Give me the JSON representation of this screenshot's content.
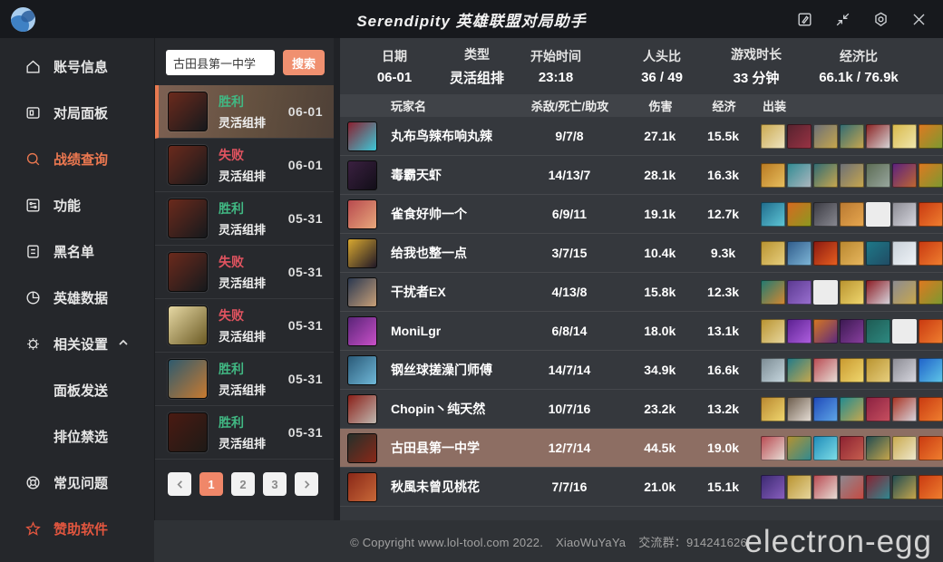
{
  "titlebar": {
    "title": "Serendipity 英雄联盟对局助手"
  },
  "sidebar": {
    "items": [
      {
        "label": "账号信息"
      },
      {
        "label": "对局面板"
      },
      {
        "label": "战绩查询"
      },
      {
        "label": "功能"
      },
      {
        "label": "黑名单"
      },
      {
        "label": "英雄数据"
      },
      {
        "label": "相关设置"
      },
      {
        "label": "面板发送"
      },
      {
        "label": "排位禁选"
      },
      {
        "label": "常见问题"
      },
      {
        "label": "赞助软件"
      }
    ]
  },
  "search": {
    "value": "古田县第一中学",
    "button_label": "搜索"
  },
  "match_list": [
    {
      "result": "胜利",
      "win": true,
      "type": "灵活组排",
      "date": "06-01",
      "selected": true,
      "avatar": [
        "#6b2a1c",
        "#16191c"
      ]
    },
    {
      "result": "失败",
      "win": false,
      "type": "灵活组排",
      "date": "06-01",
      "selected": false,
      "avatar": [
        "#6b2a1c",
        "#16191c"
      ]
    },
    {
      "result": "胜利",
      "win": true,
      "type": "灵活组排",
      "date": "05-31",
      "selected": false,
      "avatar": [
        "#6b2a1c",
        "#16191c"
      ]
    },
    {
      "result": "失败",
      "win": false,
      "type": "灵活组排",
      "date": "05-31",
      "selected": false,
      "avatar": [
        "#6b2a1c",
        "#16191c"
      ]
    },
    {
      "result": "失败",
      "win": false,
      "type": "灵活组排",
      "date": "05-31",
      "selected": false,
      "avatar": [
        "#e6d8a4",
        "#6b5a24"
      ]
    },
    {
      "result": "胜利",
      "win": true,
      "type": "灵活组排",
      "date": "05-31",
      "selected": false,
      "avatar": [
        "#2e5a6e",
        "#c87a30"
      ]
    },
    {
      "result": "胜利",
      "win": true,
      "type": "灵活组排",
      "date": "05-31",
      "selected": false,
      "avatar": [
        "#4a1a12",
        "#1e1a16"
      ]
    }
  ],
  "pagination": {
    "pages": [
      "1",
      "2",
      "3"
    ],
    "active_index": 0
  },
  "detail": {
    "stats": [
      {
        "label": "日期",
        "value": "06-01"
      },
      {
        "label": "类型",
        "value": "灵活组排"
      },
      {
        "label": "开始时间",
        "value": "23:18"
      },
      {
        "label": "人头比",
        "value": "36 / 49"
      },
      {
        "label": "游戏时长",
        "value": "33 分钟"
      },
      {
        "label": "经济比",
        "value": "66.1k / 76.9k"
      }
    ],
    "columns": {
      "player": "玩家名",
      "kda": "杀敌/死亡/助攻",
      "damage": "伤害",
      "economy": "经济",
      "items": "出装"
    },
    "players": [
      {
        "name": "丸布鸟辣布响丸辣",
        "kda": "9/7/8",
        "damage": "27.1k",
        "economy": "15.5k",
        "highlight": false,
        "avatar": [
          "#8a2030",
          "#3cc8d8"
        ],
        "items": [
          [
            "#caa84e",
            "#efe6c4"
          ],
          [
            "#55222e",
            "#9a3344"
          ],
          [
            "#6a6e78",
            "#c9a84c"
          ],
          [
            "#2e6a74",
            "#caa84e"
          ],
          [
            "#8a2020",
            "#d8d8da"
          ],
          [
            "#d8b84a",
            "#f0e8b0"
          ],
          [
            "#e07820",
            "#7a9a30"
          ]
        ]
      },
      {
        "name": "毒霸天虾",
        "kda": "14/13/7",
        "damage": "28.1k",
        "economy": "16.3k",
        "highlight": false,
        "avatar": [
          "#3a2040",
          "#120e18"
        ],
        "items": [
          [
            "#b87820",
            "#e8c060"
          ],
          [
            "#2e8a92",
            "#b0b8c0"
          ],
          [
            "#2e6a74",
            "#caa84e"
          ],
          [
            "#6a6e78",
            "#c9a84c"
          ],
          [
            "#5a6a52",
            "#9aa8a0"
          ],
          [
            "#5a2080",
            "#c06830"
          ],
          [
            "#e07820",
            "#7a9a30"
          ]
        ]
      },
      {
        "name": "雀食好帅一个",
        "kda": "6/9/11",
        "damage": "19.1k",
        "economy": "12.7k",
        "highlight": false,
        "avatar": [
          "#b84a4e",
          "#e8a87c"
        ],
        "items": [
          [
            "#1e6a8a",
            "#60c8d8"
          ],
          [
            "#d86820",
            "#8a9a20"
          ],
          [
            "#3a3a42",
            "#8a8a92"
          ],
          [
            "#b87830",
            "#e8a850"
          ],
          "empty",
          [
            "#8a8a92",
            "#d8d8e0"
          ],
          [
            "#c83810",
            "#f08030"
          ]
        ]
      },
      {
        "name": "给我也整一点",
        "kda": "3/7/15",
        "damage": "10.4k",
        "economy": "9.3k",
        "highlight": false,
        "avatar": [
          "#d8a830",
          "#201826"
        ],
        "items": [
          [
            "#b8922e",
            "#e8d080"
          ],
          [
            "#2e5a8a",
            "#80b8d8"
          ],
          [
            "#8a1810",
            "#e86020"
          ],
          [
            "#b8862e",
            "#e8b860"
          ],
          [
            "#1e7a8a",
            "#204a62"
          ],
          [
            "#c8d0d8",
            "#f0f4f8"
          ],
          [
            "#c83810",
            "#f08030"
          ]
        ]
      },
      {
        "name": "干扰者EX",
        "kda": "4/13/8",
        "damage": "15.8k",
        "economy": "12.3k",
        "highlight": false,
        "avatar": [
          "#2a3850",
          "#c8a078"
        ],
        "items": [
          [
            "#1e7a72",
            "#d88830"
          ],
          [
            "#5a3890",
            "#9a70d0"
          ],
          "empty",
          [
            "#b8922e",
            "#f0d870"
          ],
          [
            "#8a1820",
            "#d8d8e0"
          ],
          [
            "#8a8a92",
            "#c9a84c"
          ],
          [
            "#e07820",
            "#7a9a30"
          ]
        ]
      },
      {
        "name": "MoniLgr",
        "kda": "6/8/14",
        "damage": "18.0k",
        "economy": "13.1k",
        "highlight": false,
        "avatar": [
          "#5a2478",
          "#c850c8"
        ],
        "items": [
          [
            "#b8922e",
            "#e8d8a0"
          ],
          [
            "#5a2090",
            "#b060e0"
          ],
          [
            "#d87820",
            "#5a2880"
          ],
          [
            "#3a1850",
            "#8a40a0"
          ],
          [
            "#1e5a52",
            "#2e8a82"
          ],
          "empty",
          [
            "#c83810",
            "#f08030"
          ]
        ]
      },
      {
        "name": "钢丝球搓澡门师傅",
        "kda": "14/7/14",
        "damage": "34.9k",
        "economy": "16.6k",
        "highlight": false,
        "avatar": [
          "#2a5a78",
          "#70b8d8"
        ],
        "items": [
          [
            "#7a8a92",
            "#c8d8e0"
          ],
          [
            "#1e7a8a",
            "#c9a84c"
          ],
          [
            "#b84850",
            "#e8e0d8"
          ],
          [
            "#c8982e",
            "#f0d870"
          ],
          [
            "#b8922e",
            "#e8d080"
          ],
          [
            "#8a8a92",
            "#d8d8e0"
          ],
          [
            "#1e60c8",
            "#60c8e8"
          ]
        ]
      },
      {
        "name": "Chopin丶纯天然",
        "kda": "10/7/16",
        "damage": "23.2k",
        "economy": "13.2k",
        "highlight": false,
        "avatar": [
          "#8a1f18",
          "#c0b8b0"
        ],
        "items": [
          [
            "#b8862e",
            "#f0d870"
          ],
          [
            "#6a5a4a",
            "#e8e0d8"
          ],
          [
            "#1e48b8",
            "#60a8e8"
          ],
          [
            "#1e8a92",
            "#c9a84c"
          ],
          [
            "#8a2040",
            "#c85060"
          ],
          [
            "#a83020",
            "#d8d8e0"
          ],
          [
            "#c83810",
            "#f08030"
          ]
        ]
      },
      {
        "name": "古田县第一中学",
        "kda": "12/7/14",
        "damage": "44.5k",
        "economy": "19.0k",
        "highlight": true,
        "avatar": [
          "#26302a",
          "#8a2818"
        ],
        "items": [
          [
            "#b84850",
            "#e8e0d8"
          ],
          [
            "#b8922e",
            "#2e8a92"
          ],
          [
            "#1e8ab8",
            "#80e0e8"
          ],
          [
            "#8a2030",
            "#c86050"
          ],
          [
            "#1e4a52",
            "#c9a84c"
          ],
          [
            "#c8a84c",
            "#f0ead0"
          ],
          [
            "#c83810",
            "#f08030"
          ]
        ]
      },
      {
        "name": "秋風未曾见桃花",
        "kda": "7/7/16",
        "damage": "21.0k",
        "economy": "15.1k",
        "highlight": false,
        "avatar": [
          "#8a2818",
          "#c86838"
        ],
        "items": [
          [
            "#3a2870",
            "#8a60c0"
          ],
          [
            "#b8922e",
            "#e8d8a0"
          ],
          [
            "#b84850",
            "#e8e0d8"
          ],
          [
            "#8a8a92",
            "#c84840"
          ],
          [
            "#8a2030",
            "#2e8a92"
          ],
          [
            "#1e4a52",
            "#c9a84c"
          ],
          [
            "#c83810",
            "#f08030"
          ]
        ]
      }
    ]
  },
  "footer": {
    "copyright": "© Copyright www.lol-tool.com 2022.",
    "author": "XiaoWuYaYa",
    "group": "交流群：914241626",
    "brand": "electron-egg"
  },
  "colors": {
    "accent_orange": "#f08769",
    "sidebar_active": "#ec7850",
    "sponsor_red": "#e2563f",
    "win_green": "#41b883",
    "lose_red": "#e25460",
    "highlight_row": "#8d6e63"
  }
}
